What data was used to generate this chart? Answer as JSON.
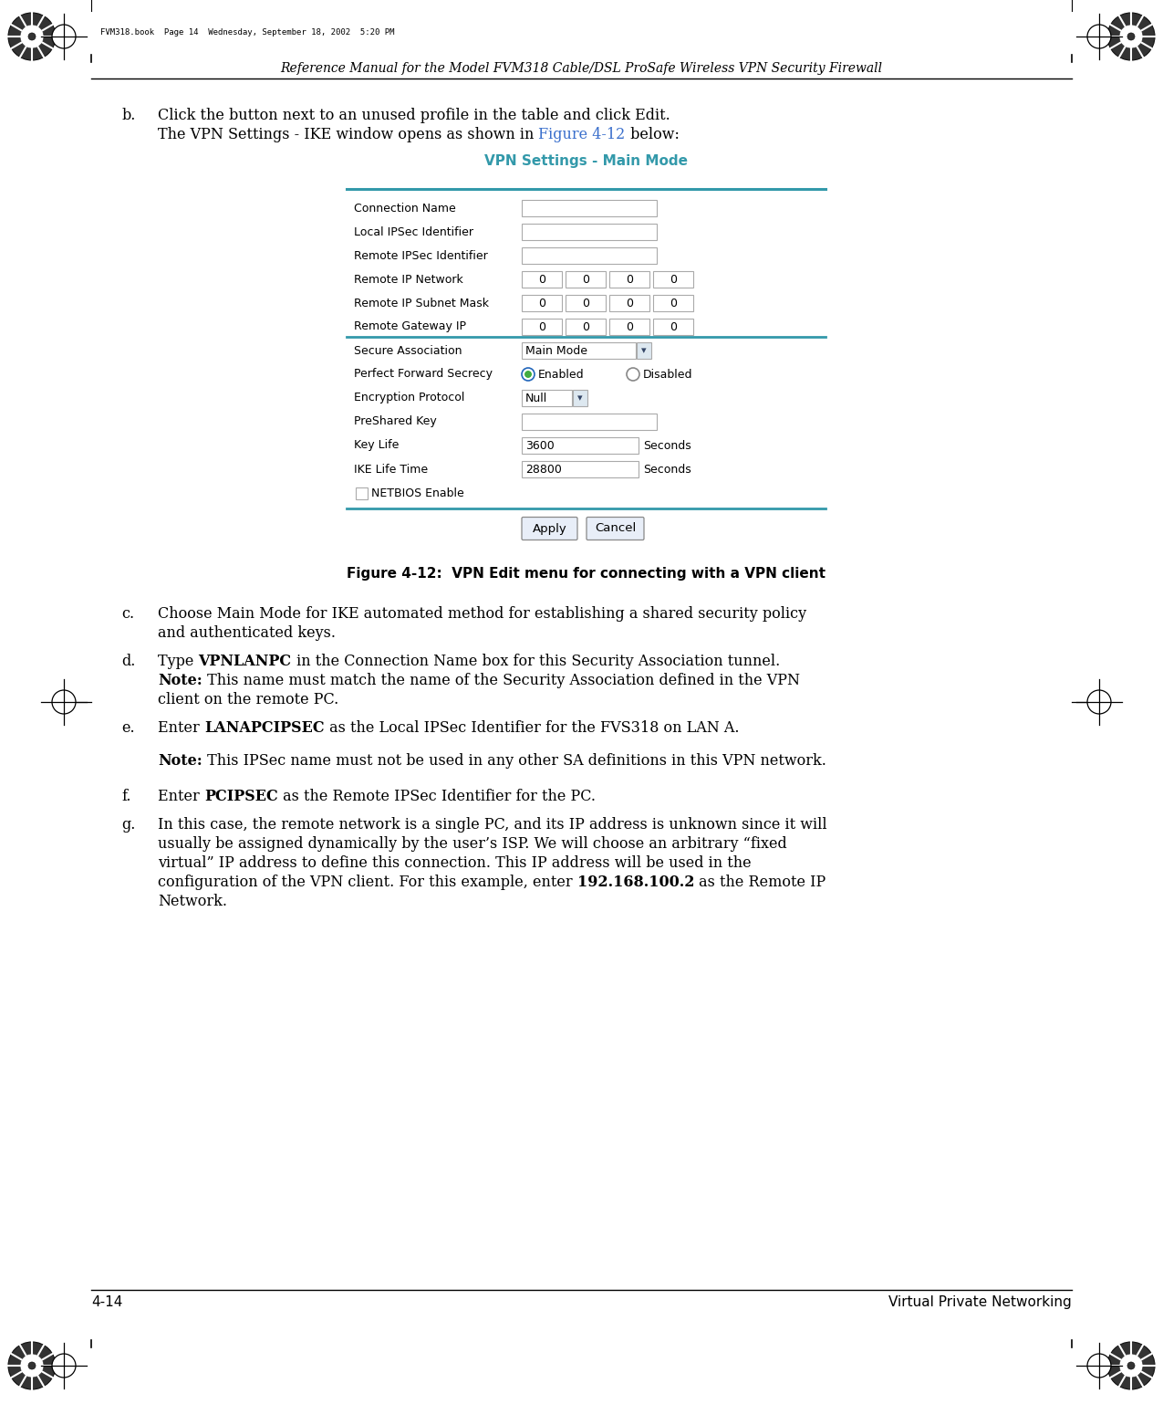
{
  "page_header": "Reference Manual for the Model FVM318 Cable/DSL ProSafe Wireless VPN Security Firewall",
  "page_footer_left": "4-14",
  "page_footer_right": "Virtual Private Networking",
  "header_stamp": "FVM318.book  Page 14  Wednesday, September 18, 2002  5:20 PM",
  "bg_color": "#ffffff",
  "blue_color": "#3a6fcc",
  "teal_color": "#3399aa",
  "form_fields": [
    {
      "label": "Connection Name",
      "type": "text",
      "value": ""
    },
    {
      "label": "Local IPSec Identifier",
      "type": "text",
      "value": ""
    },
    {
      "label": "Remote IPSec Identifier",
      "type": "text",
      "value": ""
    },
    {
      "label": "Remote IP Network",
      "type": "quad",
      "values": [
        "0",
        "0",
        "0",
        "0"
      ]
    },
    {
      "label": "Remote IP Subnet Mask",
      "type": "quad",
      "values": [
        "0",
        "0",
        "0",
        "0"
      ]
    },
    {
      "label": "Remote Gateway IP",
      "type": "quad",
      "values": [
        "0",
        "0",
        "0",
        "0"
      ]
    },
    {
      "label": "Secure Association",
      "type": "dropdown",
      "value": "Main Mode"
    },
    {
      "label": "Perfect Forward Secrecy",
      "type": "radio",
      "options": [
        "Enabled",
        "Disabled"
      ],
      "selected": 0
    },
    {
      "label": "Encryption Protocol",
      "type": "dropdown_small",
      "value": "Null"
    },
    {
      "label": "PreShared Key",
      "type": "text",
      "value": ""
    },
    {
      "label": "Key Life",
      "type": "text_seconds",
      "value": "3600"
    },
    {
      "label": "IKE Life Time",
      "type": "text_seconds",
      "value": "28800"
    }
  ],
  "vpn_title": "VPN Settings - Main Mode",
  "figure_caption": "Figure 4-12:  VPN Edit menu for connecting with a VPN client",
  "body_lines": [
    {
      "indent": 1,
      "letter": "b.",
      "parts": [
        [
          {
            "t": "Click the button next to an unused profile in the table and click Edit.",
            "bold": false,
            "blue": false,
            "nl": true
          }
        ],
        [
          {
            "t": "The VPN Settings - IKE window opens as shown in ",
            "bold": false,
            "blue": false
          },
          {
            "t": "Figure 4-12",
            "bold": false,
            "blue": true
          },
          {
            "t": " below:",
            "bold": false,
            "blue": false,
            "nl": true
          }
        ]
      ]
    },
    {
      "indent": 1,
      "letter": "c.",
      "parts": [
        [
          {
            "t": "Choose Main Mode for IKE automated method for establishing a shared security policy",
            "bold": false,
            "blue": false,
            "nl": true
          }
        ],
        [
          {
            "t": "and authenticated keys.",
            "bold": false,
            "blue": false,
            "nl": true
          }
        ]
      ]
    },
    {
      "indent": 1,
      "letter": "d.",
      "parts": [
        [
          {
            "t": "Type ",
            "bold": false,
            "blue": false
          },
          {
            "t": "VPNLANPC",
            "bold": true,
            "blue": false
          },
          {
            "t": " in the Connection Name box for this Security Association tunnel.",
            "bold": false,
            "blue": false,
            "nl": true
          }
        ],
        [
          {
            "t": "Note:",
            "bold": true,
            "blue": false
          },
          {
            "t": " This name must match the name of the Security Association defined in the VPN",
            "bold": false,
            "blue": false,
            "nl": true
          }
        ],
        [
          {
            "t": "client on the remote PC.",
            "bold": false,
            "blue": false,
            "nl": true
          }
        ]
      ]
    },
    {
      "indent": 1,
      "letter": "e.",
      "parts": [
        [
          {
            "t": "Enter ",
            "bold": false,
            "blue": false
          },
          {
            "t": "LANAPCIPSEC",
            "bold": true,
            "blue": false
          },
          {
            "t": " as the Local IPSec Identifier for the FVS318 on LAN A.",
            "bold": false,
            "blue": false,
            "nl": true
          }
        ],
        [
          {
            "t": "",
            "bold": false,
            "blue": false,
            "nl": true,
            "blank": true
          }
        ],
        [
          {
            "t": "Note:",
            "bold": true,
            "blue": false
          },
          {
            "t": " This IPSec name must not be used in any other SA definitions in this VPN network.",
            "bold": false,
            "blue": false,
            "nl": true
          }
        ]
      ]
    },
    {
      "indent": 1,
      "letter": "f.",
      "parts": [
        [
          {
            "t": "Enter ",
            "bold": false,
            "blue": false
          },
          {
            "t": "PCIPSEC",
            "bold": true,
            "blue": false
          },
          {
            "t": " as the Remote IPSec Identifier for the PC.",
            "bold": false,
            "blue": false,
            "nl": true
          }
        ]
      ]
    },
    {
      "indent": 1,
      "letter": "g.",
      "parts": [
        [
          {
            "t": "In this case, the remote network is a single PC, and its IP address is unknown since it will",
            "bold": false,
            "blue": false,
            "nl": true
          }
        ],
        [
          {
            "t": "usually be assigned dynamically by the user’s ISP. We will choose an arbitrary “fixed",
            "bold": false,
            "blue": false,
            "nl": true
          }
        ],
        [
          {
            "t": "virtual” IP address to define this connection. This IP address will be used in the",
            "bold": false,
            "blue": false,
            "nl": true
          }
        ],
        [
          {
            "t": "configuration of the VPN client. For this example, enter ",
            "bold": false,
            "blue": false
          },
          {
            "t": "192.168.100.2",
            "bold": true,
            "blue": false
          },
          {
            "t": " as the Remote IP",
            "bold": false,
            "blue": false,
            "nl": true
          }
        ],
        [
          {
            "t": "Network.",
            "bold": false,
            "blue": false,
            "nl": true
          }
        ]
      ]
    }
  ]
}
